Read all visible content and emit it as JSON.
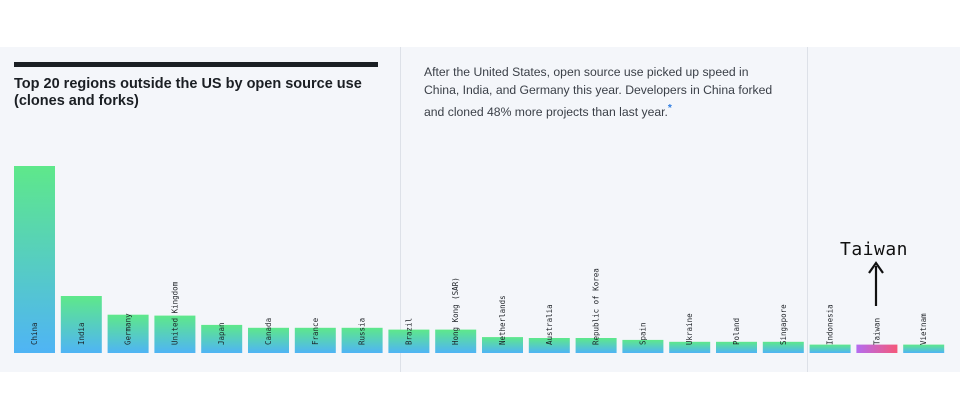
{
  "description": {
    "text": "After the United States, open source use picked up speed in China, India, and Germany this year. Developers in China forked and cloned 48% more projects than last year.",
    "footnote_mark": "*"
  },
  "annotation": {
    "label": "Taiwan"
  },
  "colors": {
    "bar_gradient_top": "#5ee88a",
    "bar_gradient_bottom": "#4fb4f5",
    "highlight_gradient_left": "#b46cf0",
    "highlight_gradient_right": "#f5587a",
    "title_rule": "#1b1f24",
    "panel_background": "#f4f6fa"
  },
  "chart_data": {
    "type": "bar",
    "title": "Top 20 regions outside the US by open source use (clones and forks)",
    "categories": [
      "China",
      "India",
      "Germany",
      "United Kingdom",
      "Japan",
      "Canada",
      "France",
      "Russia",
      "Brazil",
      "Hong Kong (SAR)",
      "Netherlands",
      "Australia",
      "Republic of Korea",
      "Spain",
      "Ukraine",
      "Poland",
      "Singapore",
      "Indonesia",
      "Taiwan",
      "Vietnam"
    ],
    "values": [
      100,
      30.5,
      20.5,
      20,
      15,
      13.5,
      13.5,
      13.5,
      12.5,
      12.5,
      8.5,
      8,
      8,
      7,
      6,
      6,
      6,
      4.5,
      4.5,
      4.5
    ],
    "highlighted": "Taiwan",
    "ylim": [
      0,
      100
    ],
    "grid": false,
    "legend": "none"
  }
}
